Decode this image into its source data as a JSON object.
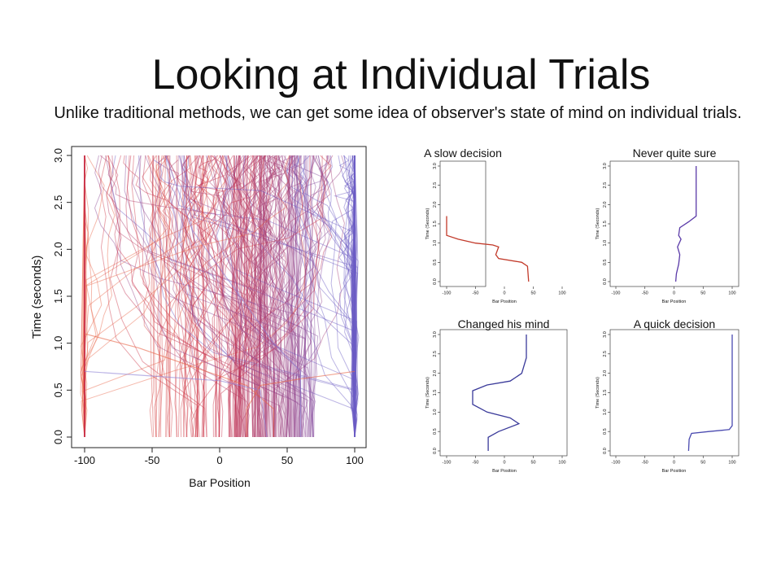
{
  "slide": {
    "title": "Looking at Individual Trials",
    "subtitle": "Unlike traditional methods, we can get some idea of observer's state of mind on individual trials."
  },
  "chart_data": [
    {
      "type": "line",
      "title": "",
      "xlabel": "Bar Position",
      "ylabel": "Time (seconds)",
      "xlim": [
        -100,
        100
      ],
      "ylim": [
        0,
        3
      ],
      "xticks": [
        -100,
        -50,
        0,
        50,
        100
      ],
      "yticks": [
        0.0,
        0.5,
        1.0,
        1.5,
        2.0,
        2.5,
        3.0
      ],
      "grid": false,
      "colors": [
        "#e8674a",
        "#c9304a",
        "#6a5bc4",
        "#8f84d6"
      ],
      "series_note": "approximately 300 individual trial trajectories, colored from red to blue",
      "series": [
        {
          "values": [
            [
              -100,
              3.0
            ],
            [
              -100,
              0.0
            ]
          ]
        },
        {
          "values": [
            [
              100,
              3.0
            ],
            [
              100,
              0.0
            ]
          ]
        },
        {
          "values": [
            [
              -100,
              1.1
            ],
            [
              -60,
              0.95
            ],
            [
              -20,
              0.75
            ],
            [
              20,
              0.55
            ],
            [
              40,
              0.3
            ],
            [
              40,
              0.0
            ]
          ]
        },
        {
          "values": [
            [
              -100,
              0.7
            ],
            [
              -50,
              0.65
            ],
            [
              0,
              0.6
            ],
            [
              30,
              0.5
            ],
            [
              35,
              0.0
            ]
          ]
        },
        {
          "values": [
            [
              100,
              0.7
            ],
            [
              60,
              0.62
            ],
            [
              30,
              0.55
            ],
            [
              20,
              0.3
            ],
            [
              20,
              0.0
            ]
          ]
        },
        {
          "values": [
            [
              -40,
              3.0
            ],
            [
              -20,
              2.2
            ],
            [
              10,
              1.6
            ],
            [
              40,
              1.0
            ],
            [
              60,
              0.7
            ],
            [
              60,
              0.0
            ]
          ]
        }
      ]
    },
    {
      "type": "line",
      "title": "A slow decision",
      "xlabel": "Bar Position",
      "ylabel": "Time (Seconds)",
      "xlim": [
        -100,
        100
      ],
      "ylim": [
        0,
        3
      ],
      "xticks": [
        -100,
        -50,
        0,
        50,
        100
      ],
      "yticks": [
        0.0,
        0.5,
        1.0,
        1.5,
        2.0,
        2.5,
        3.0
      ],
      "series": [
        {
          "values": [
            [
              -100,
              1.7
            ],
            [
              -100,
              1.2
            ],
            [
              -80,
              1.1
            ],
            [
              -50,
              1.0
            ],
            [
              -20,
              0.95
            ],
            [
              -10,
              0.9
            ],
            [
              -15,
              0.7
            ],
            [
              -10,
              0.6
            ],
            [
              30,
              0.5
            ],
            [
              40,
              0.4
            ],
            [
              42,
              0.0
            ]
          ]
        }
      ]
    },
    {
      "type": "line",
      "title": "Never quite sure",
      "xlabel": "Bar Position",
      "ylabel": "Time (Seconds)",
      "xlim": [
        -100,
        100
      ],
      "ylim": [
        0,
        3
      ],
      "xticks": [
        -100,
        -50,
        0,
        50,
        100
      ],
      "yticks": [
        0.0,
        0.5,
        1.0,
        1.5,
        2.0,
        2.5,
        3.0
      ],
      "series": [
        {
          "values": [
            [
              38,
              3.0
            ],
            [
              38,
              1.7
            ],
            [
              25,
              1.55
            ],
            [
              10,
              1.4
            ],
            [
              8,
              1.2
            ],
            [
              12,
              1.1
            ],
            [
              6,
              0.9
            ],
            [
              10,
              0.7
            ],
            [
              8,
              0.45
            ],
            [
              4,
              0.2
            ],
            [
              3,
              0.0
            ]
          ]
        }
      ]
    },
    {
      "type": "line",
      "title": "Changed his mind",
      "xlabel": "Bar Position",
      "ylabel": "Time (Seconds)",
      "xlim": [
        -100,
        100
      ],
      "ylim": [
        0,
        3
      ],
      "xticks": [
        -100,
        -50,
        0,
        50,
        100
      ],
      "yticks": [
        0.0,
        0.5,
        1.0,
        1.5,
        2.0,
        2.5,
        3.0
      ],
      "series": [
        {
          "values": [
            [
              38,
              3.0
            ],
            [
              38,
              2.4
            ],
            [
              30,
              2.0
            ],
            [
              10,
              1.8
            ],
            [
              -30,
              1.7
            ],
            [
              -55,
              1.55
            ],
            [
              -55,
              1.2
            ],
            [
              -30,
              1.0
            ],
            [
              10,
              0.85
            ],
            [
              25,
              0.7
            ],
            [
              -10,
              0.5
            ],
            [
              -28,
              0.35
            ],
            [
              -28,
              0.0
            ]
          ]
        }
      ]
    },
    {
      "type": "line",
      "title": "A quick decision",
      "xlabel": "Bar Position",
      "ylabel": "Time (Seconds)",
      "xlim": [
        -100,
        100
      ],
      "ylim": [
        0,
        3
      ],
      "xticks": [
        -100,
        -50,
        0,
        50,
        100
      ],
      "yticks": [
        0.0,
        0.5,
        1.0,
        1.5,
        2.0,
        2.5,
        3.0
      ],
      "series": [
        {
          "values": [
            [
              100,
              3.0
            ],
            [
              100,
              0.65
            ],
            [
              95,
              0.55
            ],
            [
              60,
              0.5
            ],
            [
              30,
              0.45
            ],
            [
              26,
              0.3
            ],
            [
              25,
              0.0
            ]
          ]
        }
      ]
    }
  ]
}
